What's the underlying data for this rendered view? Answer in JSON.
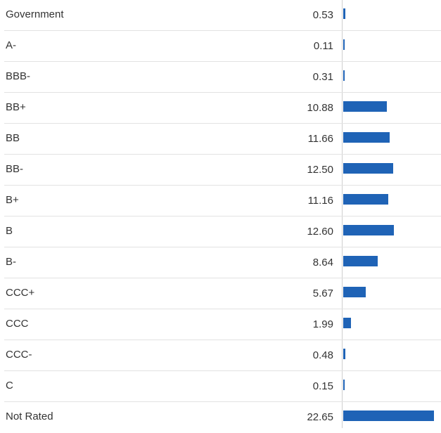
{
  "chart_data": {
    "type": "bar",
    "orientation": "horizontal",
    "categories": [
      "Government",
      "A-",
      "BBB-",
      "BB+",
      "BB",
      "BB-",
      "B+",
      "B",
      "B-",
      "CCC+",
      "CCC",
      "CCC-",
      "C",
      "Not Rated"
    ],
    "values": [
      0.53,
      0.11,
      0.31,
      10.88,
      11.66,
      12.5,
      11.16,
      12.6,
      8.64,
      5.67,
      1.99,
      0.48,
      0.15,
      22.65
    ],
    "value_labels": [
      "0.53",
      "0.11",
      "0.31",
      "10.88",
      "11.66",
      "12.50",
      "11.16",
      "12.60",
      "8.64",
      "5.67",
      "1.99",
      "0.48",
      "0.15",
      "22.65"
    ],
    "xlim": [
      0,
      22.65
    ],
    "grid": false,
    "colors": {
      "bar": "#1f63b6",
      "divider": "#e2e2e2",
      "axis": "#cfcfcf",
      "text": "#333333"
    }
  }
}
